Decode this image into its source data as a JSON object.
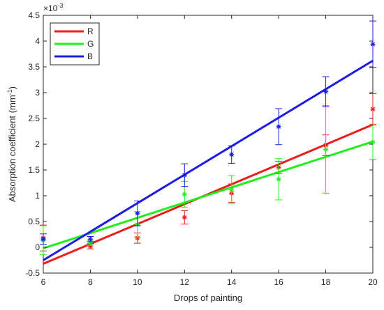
{
  "chart_data": {
    "type": "scatter",
    "title": "",
    "xlabel": "Drops of painting",
    "ylabel": "Absorption coefficient (mm",
    "ylabel_superscript": "-1",
    "ylabel_suffix": ")",
    "y_exponent_label": "×10",
    "y_exponent_power": "-3",
    "xlim": [
      6,
      20
    ],
    "ylim": [
      -0.5,
      4.5
    ],
    "xticks": [
      6,
      8,
      10,
      12,
      14,
      16,
      18,
      20
    ],
    "yticks": [
      -0.5,
      0,
      0.5,
      1,
      1.5,
      2,
      2.5,
      3,
      3.5,
      4,
      4.5
    ],
    "grid": false,
    "legend_position": "top-left",
    "x": [
      6,
      8,
      10,
      12,
      14,
      16,
      18,
      20
    ],
    "series": [
      {
        "name": "R",
        "color": "#ee1c1c",
        "values": [
          0.18,
          0.02,
          0.18,
          0.58,
          1.05,
          1.55,
          1.98,
          2.68
        ],
        "err": [
          0.25,
          0.05,
          0.1,
          0.13,
          0.18,
          0.12,
          0.2,
          0.3
        ],
        "fit": [
          -0.32,
          2.38
        ]
      },
      {
        "name": "G",
        "color": "#22ee1c",
        "values": [
          0.14,
          0.09,
          0.44,
          1.03,
          1.12,
          1.32,
          1.9,
          2.04
        ],
        "err": [
          0.28,
          0.05,
          0.25,
          0.25,
          0.27,
          0.4,
          0.85,
          0.33
        ],
        "fit": [
          -0.02,
          2.05
        ]
      },
      {
        "name": "B",
        "color": "#1c1ce8",
        "values": [
          0.16,
          0.16,
          0.66,
          1.4,
          1.8,
          2.34,
          3.02,
          3.94
        ],
        "err": [
          0.1,
          0.05,
          0.24,
          0.22,
          0.17,
          0.35,
          0.29,
          0.45
        ],
        "fit": [
          -0.25,
          3.62
        ]
      }
    ]
  }
}
